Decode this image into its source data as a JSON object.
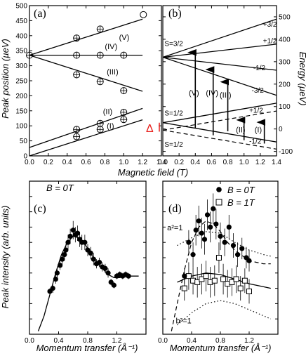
{
  "chart_data": [
    {
      "panel": "(a)",
      "type": "line",
      "xlabel": "Magnetic field (T)",
      "ylabel": "Peak position (µeV)",
      "xlim": [
        0,
        1.4
      ],
      "ylim": [
        0,
        500
      ],
      "xticks": [
        "0.0",
        "0.2",
        "0.4",
        "0.6",
        "0.8",
        "1.0",
        "1.2",
        "1.4"
      ],
      "yticks": [
        "0",
        "50",
        "100",
        "150",
        "200",
        "250",
        "300",
        "350",
        "400",
        "450",
        "500"
      ],
      "lines": [
        {
          "label": "(V)",
          "x": [
            0,
            1.2
          ],
          "y": [
            335,
            455
          ]
        },
        {
          "label": "(IV)",
          "x": [
            0,
            1.2
          ],
          "y": [
            335,
            335
          ]
        },
        {
          "label": "(III)",
          "x": [
            0,
            1.2
          ],
          "y": [
            335,
            215
          ]
        },
        {
          "label": "(II)",
          "x": [
            0,
            1.2
          ],
          "y": [
            28,
            158
          ]
        },
        {
          "label": "(I)",
          "x": [
            0,
            1.2
          ],
          "y": [
            0,
            120
          ]
        }
      ],
      "points": [
        {
          "x": 0.0,
          "y": 335
        },
        {
          "x": 0.5,
          "y": 392
        },
        {
          "x": 0.75,
          "y": 422
        },
        {
          "x": 1.0,
          "y": 470
        },
        {
          "x": 0.5,
          "y": 335
        },
        {
          "x": 0.75,
          "y": 335
        },
        {
          "x": 1.0,
          "y": 335
        },
        {
          "x": 0.5,
          "y": 270
        },
        {
          "x": 0.75,
          "y": 247
        },
        {
          "x": 1.0,
          "y": 217
        },
        {
          "x": 0.5,
          "y": 88
        },
        {
          "x": 0.75,
          "y": 108
        },
        {
          "x": 1.0,
          "y": 145
        },
        {
          "x": 0.5,
          "y": 64
        },
        {
          "x": 0.75,
          "y": 88
        },
        {
          "x": 1.0,
          "y": 121
        }
      ]
    },
    {
      "panel": "(b)",
      "type": "line",
      "xlabel": "Magnetic field (T)",
      "ylabel": "Energy (µeV)",
      "xlim": [
        0,
        1.4
      ],
      "ylim": [
        -120,
        550
      ],
      "xticks": [
        "0.0",
        "0.2",
        "0.4",
        "0.6",
        "0.8",
        "1.0",
        "1.2",
        "1.4"
      ],
      "yticks": [
        "-100",
        "0",
        "100",
        "200",
        "300",
        "400",
        "500"
      ],
      "level_labels": [
        "S=3/2",
        "S=1/2",
        "S=1/2",
        "Δ"
      ],
      "lines": [
        {
          "label": "+3/2",
          "x": [
            0,
            1.4
          ],
          "y": [
            320,
            490
          ]
        },
        {
          "label": "+1/2",
          "x": [
            0,
            1.4
          ],
          "y": [
            320,
            378
          ]
        },
        {
          "label": "-1/2",
          "x": [
            0,
            1.4
          ],
          "y": [
            320,
            262
          ]
        },
        {
          "label": "-3/2",
          "x": [
            0,
            1.4
          ],
          "y": [
            320,
            150
          ]
        },
        {
          "label": "+1/2",
          "x": [
            0,
            1.4
          ],
          "y": [
            -5,
            80
          ],
          "style": "dashed"
        },
        {
          "label": "-1/2",
          "x": [
            0,
            1.4
          ],
          "y": [
            -5,
            -90
          ],
          "style": "dashed"
        },
        {
          "label": "",
          "x": [
            0,
            1.4
          ],
          "y": [
            28,
            115
          ],
          "style": "solid"
        },
        {
          "label": "",
          "x": [
            0,
            1.4
          ],
          "y": [
            28,
            -58
          ],
          "style": "solid"
        }
      ],
      "arrows": [
        {
          "label": "(V)",
          "x": 0.4,
          "y0": 3,
          "y1": 366
        },
        {
          "label": "(IV)",
          "x": 0.62,
          "y0": -28,
          "y1": 290
        },
        {
          "label": "(III)",
          "x": 0.8,
          "y0": -10,
          "y1": 235
        },
        {
          "label": "(II)",
          "x": 1.0,
          "y0": -50,
          "y1": 65
        },
        {
          "label": "(I)",
          "x": 1.25,
          "y0": -65,
          "y1": 55
        }
      ]
    },
    {
      "panel": "(c)",
      "type": "scatter",
      "title": "B = 0T",
      "xlabel": "Momentum transfer (Å⁻¹)",
      "ylabel": "Peak intensity (arb. units)",
      "xlim": [
        0,
        1.6
      ],
      "ylim": [
        0,
        1
      ],
      "xticks": [
        "0.0",
        "0.4",
        "0.8",
        "1.2"
      ],
      "series": [
        {
          "name": "B = 0T",
          "marker": "filled-circle",
          "x": [
            0.28,
            0.32,
            0.36,
            0.38,
            0.42,
            0.45,
            0.48,
            0.5,
            0.53,
            0.56,
            0.6,
            0.63,
            0.66,
            0.69,
            0.72,
            0.76,
            0.8,
            0.84,
            0.88,
            0.92,
            0.96,
            1.0,
            1.04,
            1.08,
            1.12,
            1.16,
            1.2,
            1.24,
            1.28,
            1.32,
            1.36
          ],
          "y": [
            0.28,
            0.3,
            0.36,
            0.4,
            0.45,
            0.49,
            0.52,
            0.55,
            0.6,
            0.64,
            0.68,
            0.65,
            0.66,
            0.62,
            0.6,
            0.6,
            0.55,
            0.53,
            0.49,
            0.46,
            0.47,
            0.44,
            0.43,
            0.4,
            0.34,
            0.32,
            0.38,
            0.39,
            0.38,
            0.39,
            0.38
          ],
          "err": [
            0.02,
            0.03,
            0.03,
            0.03,
            0.03,
            0.04,
            0.04,
            0.04,
            0.05,
            0.05,
            0.06,
            0.05,
            0.05,
            0.05,
            0.05,
            0.05,
            0.04,
            0.04,
            0.04,
            0.03,
            0.03,
            0.03,
            0.03,
            0.03,
            0.02,
            0.02,
            0.02,
            0.02,
            0.02,
            0.02,
            0.02
          ]
        }
      ],
      "fit": {
        "x": [
          0.12,
          0.2,
          0.28,
          0.36,
          0.44,
          0.52,
          0.6,
          0.68,
          0.76,
          0.84,
          0.92,
          1.0,
          1.08,
          1.16,
          1.24,
          1.32,
          1.4,
          1.5
        ],
        "y": [
          0.02,
          0.12,
          0.26,
          0.4,
          0.52,
          0.6,
          0.64,
          0.63,
          0.59,
          0.53,
          0.47,
          0.43,
          0.39,
          0.37,
          0.37,
          0.38,
          0.38,
          0.38
        ]
      }
    },
    {
      "panel": "(d)",
      "type": "scatter",
      "xlabel": "Momentum transfer (Å⁻¹)",
      "xlim": [
        0,
        1.6
      ],
      "ylim": [
        0,
        1
      ],
      "xticks": [
        "0.0",
        "0.4",
        "0.8",
        "1.2"
      ],
      "legend_position": "top-right",
      "annotations": [
        "a²=1",
        "b²=1"
      ],
      "series": [
        {
          "name": "B = 0T",
          "marker": "filled-circle",
          "x": [
            0.3,
            0.36,
            0.42,
            0.46,
            0.5,
            0.54,
            0.58,
            0.62,
            0.66,
            0.7,
            0.74,
            0.8,
            0.86,
            0.92,
            0.98,
            1.04,
            1.1,
            1.16,
            1.2
          ],
          "y": [
            0.38,
            0.6,
            0.52,
            0.68,
            0.74,
            0.66,
            0.62,
            0.78,
            0.7,
            0.82,
            0.72,
            0.64,
            0.6,
            0.7,
            0.58,
            0.52,
            0.56,
            0.5,
            0.48
          ],
          "err": [
            0.05,
            0.08,
            0.08,
            0.1,
            0.1,
            0.1,
            0.1,
            0.1,
            0.1,
            0.1,
            0.1,
            0.09,
            0.09,
            0.08,
            0.08,
            0.08,
            0.07,
            0.07,
            0.07
          ]
        },
        {
          "name": "B = 1T",
          "marker": "open-square",
          "x": [
            0.3,
            0.36,
            0.42,
            0.48,
            0.54,
            0.6,
            0.66,
            0.72,
            0.78,
            0.84,
            0.9,
            0.96,
            1.02,
            1.08,
            1.14,
            1.2
          ],
          "y": [
            0.3,
            0.38,
            0.35,
            0.34,
            0.36,
            0.38,
            0.34,
            0.35,
            0.5,
            0.36,
            0.33,
            0.34,
            0.36,
            0.3,
            0.35,
            0.28
          ],
          "err": [
            0.08,
            0.09,
            0.09,
            0.1,
            0.1,
            0.1,
            0.1,
            0.1,
            0.1,
            0.1,
            0.09,
            0.09,
            0.09,
            0.08,
            0.08,
            0.08
          ]
        }
      ],
      "fits": [
        {
          "style": "solid",
          "x": [
            0.2,
            0.4,
            0.6,
            0.8,
            1.0,
            1.2,
            1.4,
            1.5
          ],
          "y": [
            0.34,
            0.38,
            0.4,
            0.39,
            0.36,
            0.33,
            0.31,
            0.3
          ]
        },
        {
          "style": "dashed",
          "x": [
            0.12,
            0.2,
            0.3,
            0.4,
            0.5,
            0.6,
            0.7,
            0.8,
            0.9,
            1.0,
            1.2,
            1.4,
            1.5
          ],
          "y": [
            0.02,
            0.2,
            0.42,
            0.6,
            0.7,
            0.74,
            0.72,
            0.67,
            0.6,
            0.55,
            0.48,
            0.46,
            0.46
          ]
        },
        {
          "style": "dotted",
          "label": "a²=1",
          "x": [
            0.2,
            0.4,
            0.6,
            0.8,
            1.0,
            1.2,
            1.4,
            1.5
          ],
          "y": [
            0.58,
            0.63,
            0.67,
            0.66,
            0.6,
            0.55,
            0.52,
            0.51
          ]
        },
        {
          "style": "dotted",
          "label": "b²=1",
          "x": [
            0.2,
            0.4,
            0.6,
            0.8,
            1.0,
            1.2,
            1.4,
            1.5
          ],
          "y": [
            0.06,
            0.14,
            0.2,
            0.22,
            0.2,
            0.16,
            0.12,
            0.1
          ]
        }
      ]
    }
  ]
}
